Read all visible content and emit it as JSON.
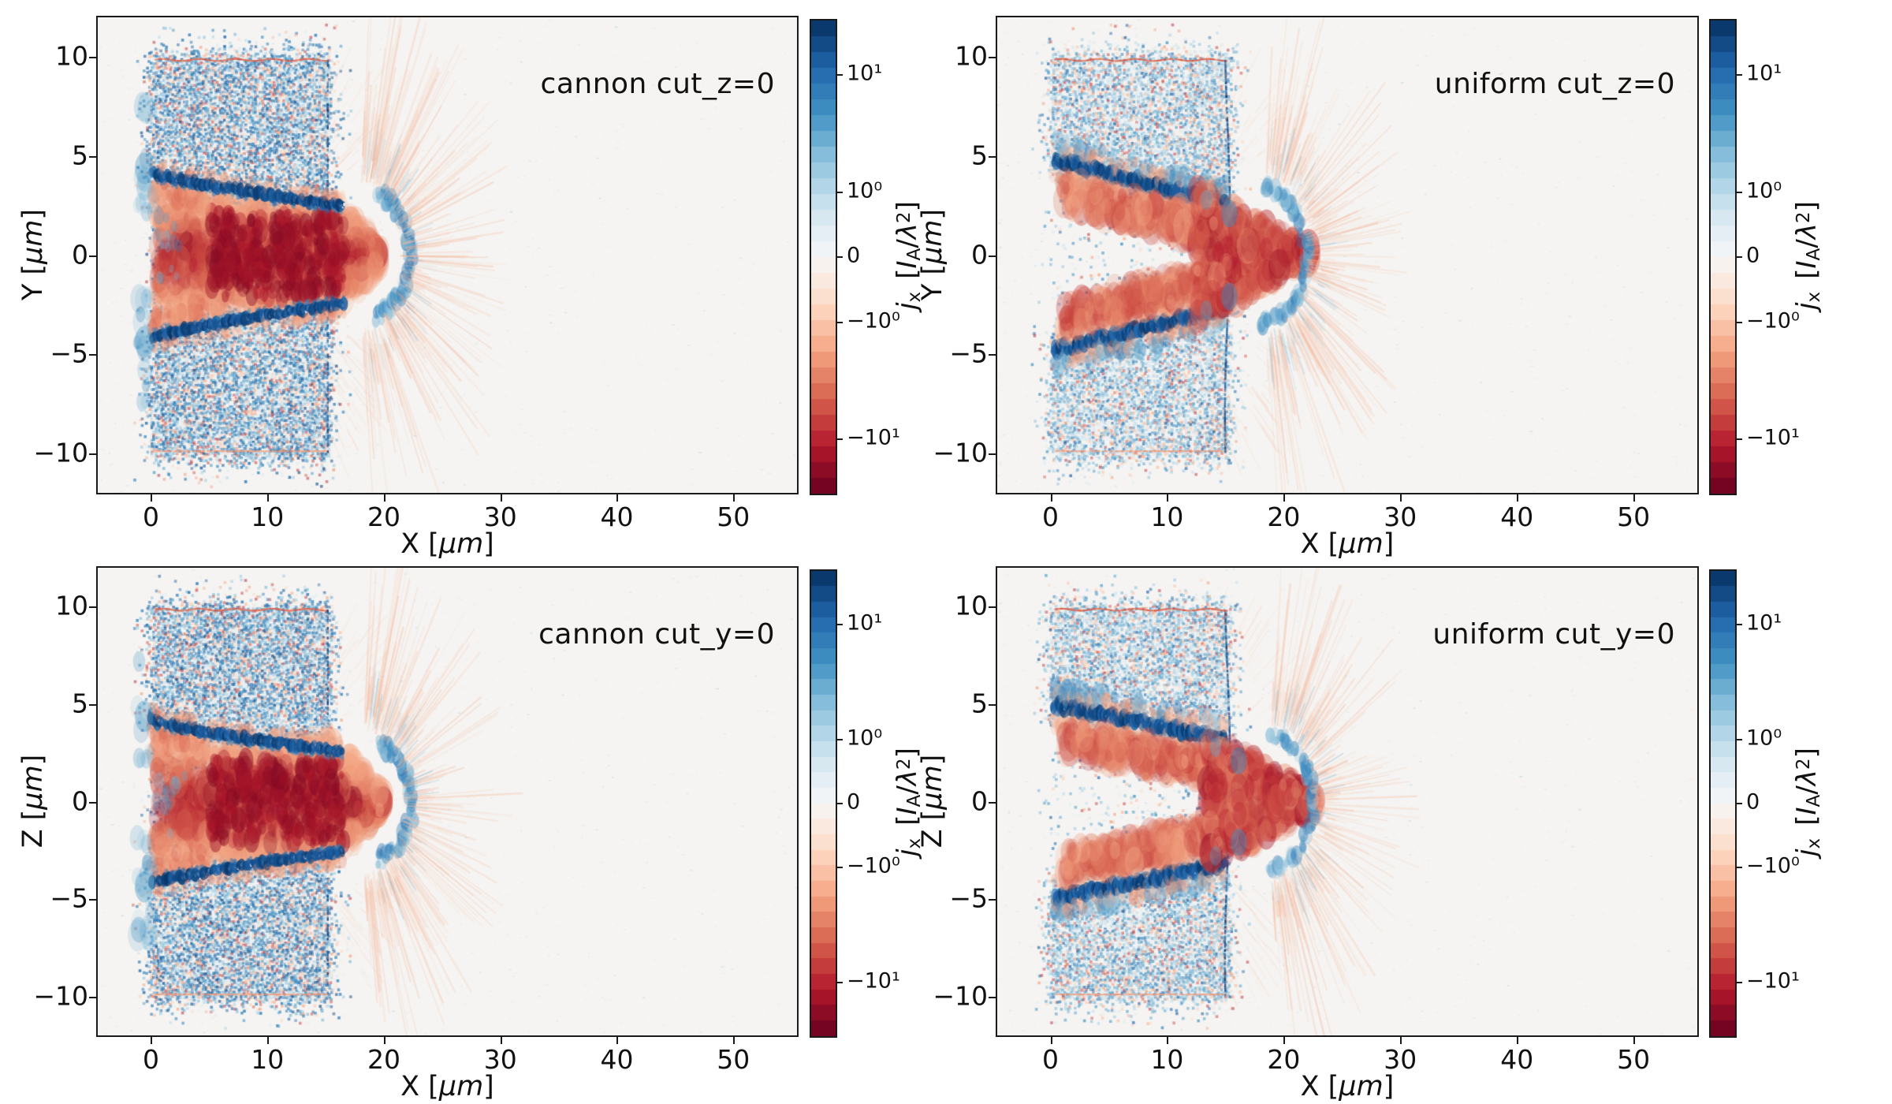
{
  "shared": {
    "background": "#ffffff",
    "plot_background": "#f5f4f2",
    "frame_color": "#1a1a1a",
    "colormap": {
      "name": "RdBu (blue = positive, red = negative)",
      "n_bands": 30,
      "anchors": [
        "#67001f",
        "#b2182b",
        "#d6604d",
        "#f4a582",
        "#fddbc7",
        "#f7f7f7",
        "#d1e5f0",
        "#92c5de",
        "#4393c3",
        "#2166ac",
        "#053061"
      ]
    },
    "colorbar_label": {
      "sym": "j",
      "sym_sub": "x",
      "open": "[",
      "current_sym": "I",
      "current_sub": "A",
      "slash": "/",
      "lambda": "λ",
      "exponent": "2",
      "close": "]"
    }
  },
  "chart_data": [
    {
      "type": "heatmap",
      "sim": "cannon",
      "cut": "z",
      "title": "cannon cut_z=0",
      "xlabel": {
        "name": "X",
        "unit_open": "[",
        "unit_sym": "μm",
        "unit_close": "]"
      },
      "ylabel": {
        "name": "Y",
        "unit_open": "[",
        "unit_sym": "μm",
        "unit_close": "]"
      },
      "xlim": [
        -4.7,
        55.6
      ],
      "ylim": [
        -12.05,
        12.05
      ],
      "x_ticks": [
        {
          "value": 0,
          "label": "0"
        },
        {
          "value": 10,
          "label": "10"
        },
        {
          "value": 20,
          "label": "20"
        },
        {
          "value": 30,
          "label": "30"
        },
        {
          "value": 40,
          "label": "40"
        },
        {
          "value": 50,
          "label": "50"
        }
      ],
      "y_ticks": [
        {
          "value": 10,
          "label": "10"
        },
        {
          "value": 5,
          "label": "5"
        },
        {
          "value": 0,
          "label": "0"
        },
        {
          "value": -5,
          "label": "−5"
        },
        {
          "value": -10,
          "label": "−10"
        }
      ],
      "colorbar": {
        "scale": "symlog",
        "ticks": [
          {
            "pos": 0.115,
            "label": "10¹"
          },
          {
            "pos": 0.3625,
            "label": "10⁰"
          },
          {
            "pos": 0.5,
            "label": "0"
          },
          {
            "pos": 0.6375,
            "label": "−10⁰"
          },
          {
            "pos": 0.885,
            "label": "−10¹"
          }
        ]
      },
      "features": {
        "target_x_um": [
          0,
          15
        ],
        "target_y_um": [
          -10,
          10
        ],
        "wall_y_start_um": 4.2,
        "wall_y_end_um": 2.6,
        "wall_x_end_um": 16.6,
        "jet_half_width_um": 2.8,
        "jet_end_x_um": 19.6,
        "ring_center_x_um": 18.6,
        "ring_rx_um": 3.7,
        "ring_ry_um": 3.1,
        "halo_center_x_um": 17.8,
        "halo_extent_um": 10,
        "speck_density": 0.93,
        "note": "pre-drilled cannon channel: converging walls ±4.2→±2.6 μm, negative (red) jet core |y|<3 μm to x≈20, blue return-current ring, red halo to x≈28"
      }
    },
    {
      "type": "heatmap",
      "sim": "uniform",
      "cut": "z",
      "title": "uniform cut_z=0",
      "xlabel": {
        "name": "X",
        "unit_open": "[",
        "unit_sym": "μm",
        "unit_close": "]"
      },
      "ylabel": {
        "name": "Y",
        "unit_open": "[",
        "unit_sym": "μm",
        "unit_close": "]"
      },
      "xlim": [
        -4.7,
        55.6
      ],
      "ylim": [
        -12.05,
        12.05
      ],
      "x_ticks": [
        {
          "value": 0,
          "label": "0"
        },
        {
          "value": 10,
          "label": "10"
        },
        {
          "value": 20,
          "label": "20"
        },
        {
          "value": 30,
          "label": "30"
        },
        {
          "value": 40,
          "label": "40"
        },
        {
          "value": 50,
          "label": "50"
        }
      ],
      "y_ticks": [
        {
          "value": 10,
          "label": "10"
        },
        {
          "value": 5,
          "label": "5"
        },
        {
          "value": 0,
          "label": "0"
        },
        {
          "value": -5,
          "label": "−5"
        },
        {
          "value": -10,
          "label": "−10"
        }
      ],
      "colorbar": {
        "scale": "symlog",
        "ticks": [
          {
            "pos": 0.115,
            "label": "10¹"
          },
          {
            "pos": 0.3625,
            "label": "10⁰"
          },
          {
            "pos": 0.5,
            "label": "0"
          },
          {
            "pos": 0.6375,
            "label": "−10⁰"
          },
          {
            "pos": 0.885,
            "label": "−10¹"
          }
        ]
      },
      "features": {
        "target_x_um": [
          0,
          15
        ],
        "target_y_um": [
          -10,
          10
        ],
        "band_y_start_um": 4.85,
        "band_y_end_um": 2.6,
        "band_x_end_um": 15.2,
        "merge_x_um": 13,
        "mass_end_x_um": 21.8,
        "ring_center_x_um": 17.8,
        "ring_rx_um": 4.2,
        "ring_ry_um": 3.4,
        "halo_center_x_um": 18.2,
        "halo_extent_um": 9.5,
        "speck_density": 0.8,
        "note": "uniform target: two bored V-channels ±4.9→±2.6 μm converging at x≈15, red current sheets merge into bulge to x≈22, blue ring, red halo"
      }
    },
    {
      "type": "heatmap",
      "sim": "cannon",
      "cut": "y",
      "title": "cannon cut_y=0",
      "xlabel": {
        "name": "X",
        "unit_open": "[",
        "unit_sym": "μm",
        "unit_close": "]"
      },
      "ylabel": {
        "name": "Z",
        "unit_open": "[",
        "unit_sym": "μm",
        "unit_close": "]"
      },
      "xlim": [
        -4.7,
        55.6
      ],
      "ylim": [
        -12.05,
        12.05
      ],
      "x_ticks": [
        {
          "value": 0,
          "label": "0"
        },
        {
          "value": 10,
          "label": "10"
        },
        {
          "value": 20,
          "label": "20"
        },
        {
          "value": 30,
          "label": "30"
        },
        {
          "value": 40,
          "label": "40"
        },
        {
          "value": 50,
          "label": "50"
        }
      ],
      "y_ticks": [
        {
          "value": 10,
          "label": "10"
        },
        {
          "value": 5,
          "label": "5"
        },
        {
          "value": 0,
          "label": "0"
        },
        {
          "value": -5,
          "label": "−5"
        },
        {
          "value": -10,
          "label": "−10"
        }
      ],
      "colorbar": {
        "scale": "symlog",
        "ticks": [
          {
            "pos": 0.115,
            "label": "10¹"
          },
          {
            "pos": 0.3625,
            "label": "10⁰"
          },
          {
            "pos": 0.5,
            "label": "0"
          },
          {
            "pos": 0.6375,
            "label": "−10⁰"
          },
          {
            "pos": 0.885,
            "label": "−10¹"
          }
        ]
      },
      "features": {
        "target_x_um": [
          0,
          15
        ],
        "target_y_um": [
          -10,
          10
        ],
        "wall_y_start_um": 4.2,
        "wall_y_end_um": 2.7,
        "wall_x_end_um": 16.4,
        "jet_half_width_um": 3.0,
        "jet_end_x_um": 19.8,
        "ring_center_x_um": 18.8,
        "ring_rx_um": 3.6,
        "ring_ry_um": 3.0,
        "halo_center_x_um": 18.0,
        "halo_extent_um": 9.5,
        "speck_density": 0.95,
        "note": "same cannon channel seen in the y=0 plane; red jet core |z|<3 μm to x≈20"
      }
    },
    {
      "type": "heatmap",
      "sim": "uniform",
      "cut": "y",
      "title": "uniform cut_y=0",
      "xlabel": {
        "name": "X",
        "unit_open": "[",
        "unit_sym": "μm",
        "unit_close": "]"
      },
      "ylabel": {
        "name": "Z",
        "unit_open": "[",
        "unit_sym": "μm",
        "unit_close": "]"
      },
      "xlim": [
        -4.7,
        55.6
      ],
      "ylim": [
        -12.05,
        12.05
      ],
      "x_ticks": [
        {
          "value": 0,
          "label": "0"
        },
        {
          "value": 10,
          "label": "10"
        },
        {
          "value": 20,
          "label": "20"
        },
        {
          "value": 30,
          "label": "30"
        },
        {
          "value": 40,
          "label": "40"
        },
        {
          "value": 50,
          "label": "50"
        }
      ],
      "y_ticks": [
        {
          "value": 10,
          "label": "10"
        },
        {
          "value": 5,
          "label": "5"
        },
        {
          "value": 0,
          "label": "0"
        },
        {
          "value": -5,
          "label": "−5"
        },
        {
          "value": -10,
          "label": "−10"
        }
      ],
      "colorbar": {
        "scale": "symlog",
        "ticks": [
          {
            "pos": 0.115,
            "label": "10¹"
          },
          {
            "pos": 0.3625,
            "label": "10⁰"
          },
          {
            "pos": 0.5,
            "label": "0"
          },
          {
            "pos": 0.6375,
            "label": "−10⁰"
          },
          {
            "pos": 0.885,
            "label": "−10¹"
          }
        ]
      },
      "features": {
        "target_x_um": [
          0,
          15
        ],
        "target_y_um": [
          -10,
          10
        ],
        "band_y_start_um": 5.0,
        "band_y_end_um": 3.2,
        "band_x_end_um": 15.0,
        "merge_x_um": 13.8,
        "mass_end_x_um": 22.2,
        "ring_center_x_um": 18.2,
        "ring_rx_um": 4.3,
        "ring_ry_um": 3.5,
        "halo_center_x_um": 18.6,
        "halo_extent_um": 9.5,
        "speck_density": 0.82,
        "note": "uniform target V-channels ±5.0→±3.2 μm in z, thick red sheets merging into bulge to x≈22"
      }
    }
  ]
}
